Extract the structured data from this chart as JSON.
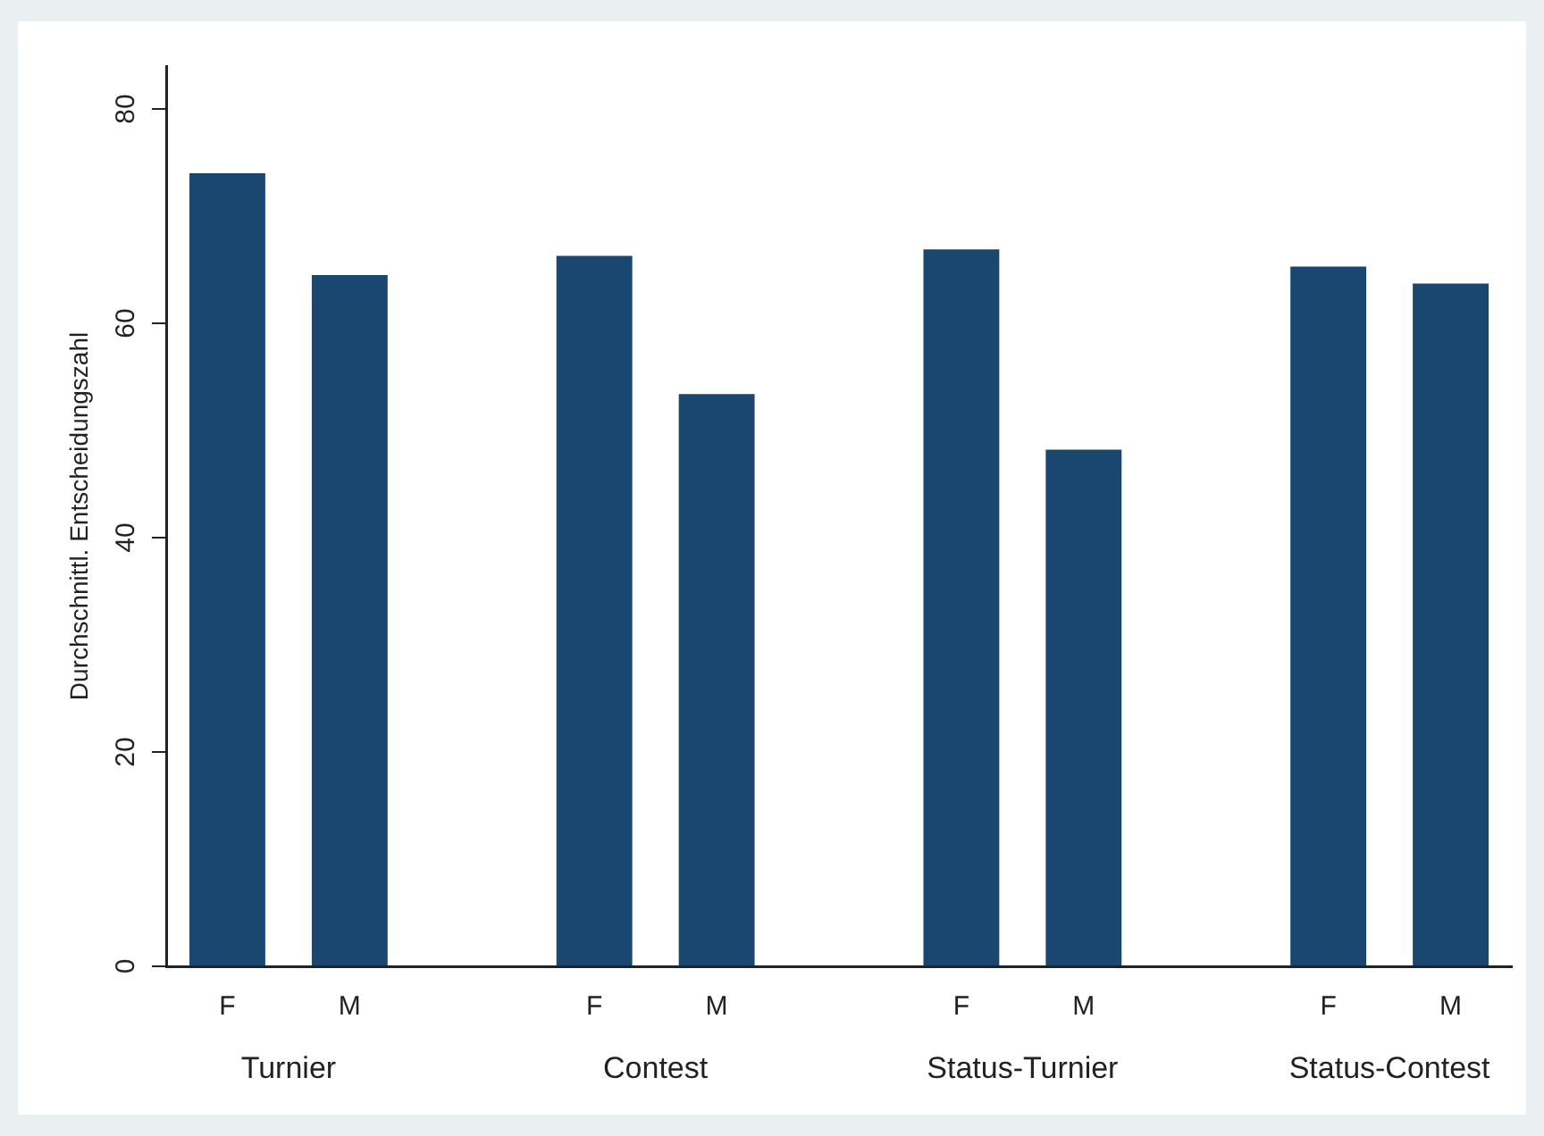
{
  "chart_data": {
    "type": "bar",
    "ylabel": "Durchschnittl. Entscheidungszahl",
    "categories": [
      "F",
      "M",
      null,
      "F",
      "M",
      null,
      "F",
      "M",
      null,
      "F",
      "M"
    ],
    "values": [
      74.0,
      64.5,
      null,
      66.3,
      53.4,
      null,
      66.9,
      48.2,
      null,
      65.3,
      63.7
    ],
    "color": "#1a476f",
    "ylim": [
      0,
      84
    ],
    "yticks": [
      0,
      20,
      40,
      60,
      80
    ],
    "grid": false,
    "legend": false,
    "annotations": [
      "Turnier",
      "Contest",
      "Status-Turnier",
      "Status-Contest"
    ]
  }
}
